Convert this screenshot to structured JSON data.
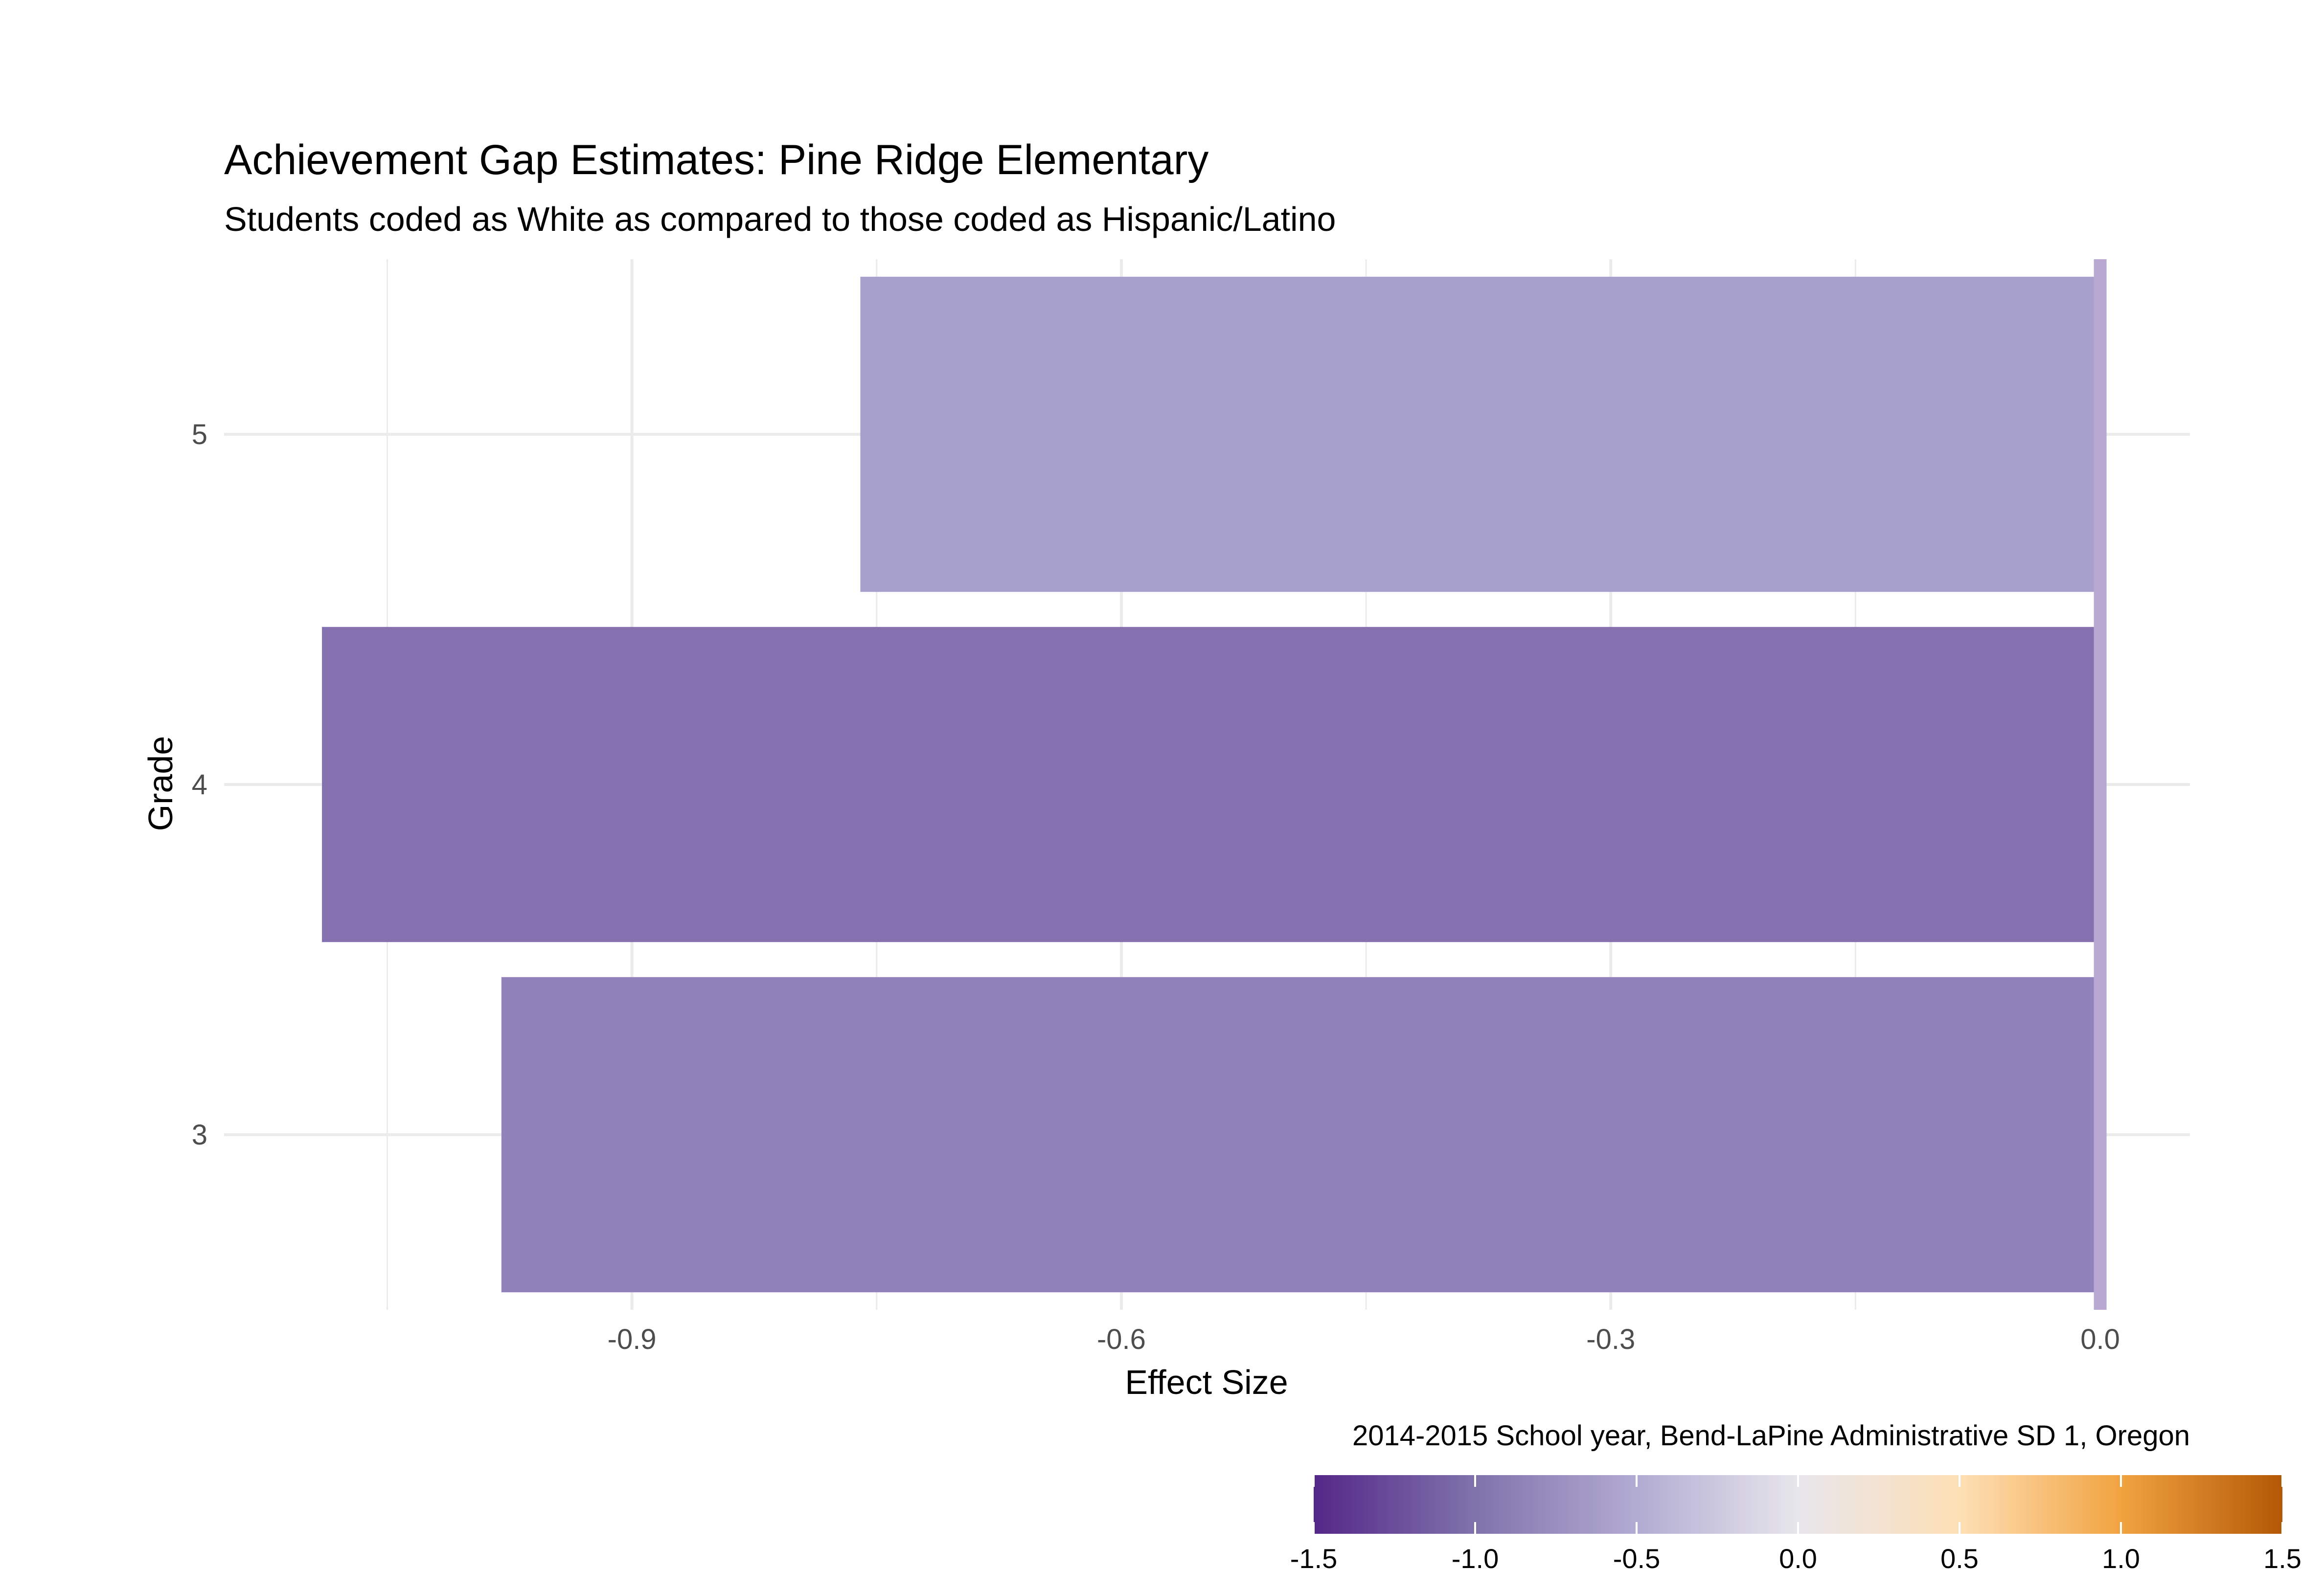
{
  "chart_data": {
    "type": "bar",
    "orientation": "horizontal",
    "title": "Achievement Gap Estimates: Pine Ridge Elementary",
    "subtitle": "Students coded as White as compared to those coded as Hispanic/Latino",
    "xlabel": "Effect Size",
    "ylabel": "Grade",
    "categories": [
      "3",
      "4",
      "5"
    ],
    "values": [
      -0.98,
      -1.09,
      -0.76
    ],
    "xlim": [
      -1.15,
      0.055
    ],
    "xticks": [
      -0.9,
      -0.6,
      -0.3,
      0.0
    ],
    "xtick_labels": [
      "-0.9",
      "-0.6",
      "-0.3",
      "0.0"
    ],
    "grid": true,
    "reference_line": {
      "x": 0.0,
      "color": "#b8a8d2"
    },
    "caption": "2014-2015 School year, Bend-LaPine Administrative SD 1, Oregon",
    "legend": {
      "placement": "bottom-right",
      "type": "colorbar",
      "range": [
        -1.5,
        1.5
      ],
      "ticks": [
        -1.5,
        -1.0,
        -0.5,
        0.0,
        0.5,
        1.0,
        1.5
      ],
      "tick_labels": [
        "-1.5",
        "-1.0",
        "-0.5",
        "0.0",
        "0.5",
        "1.0",
        "1.5"
      ],
      "palette": [
        "#542788",
        "#8073ac",
        "#b2abd2",
        "#e8e6ec",
        "#fee0b6",
        "#f1a340",
        "#b35806"
      ]
    },
    "bar_colors": [
      "#9182bc",
      "#8570b0",
      "#a8a0cc"
    ]
  }
}
